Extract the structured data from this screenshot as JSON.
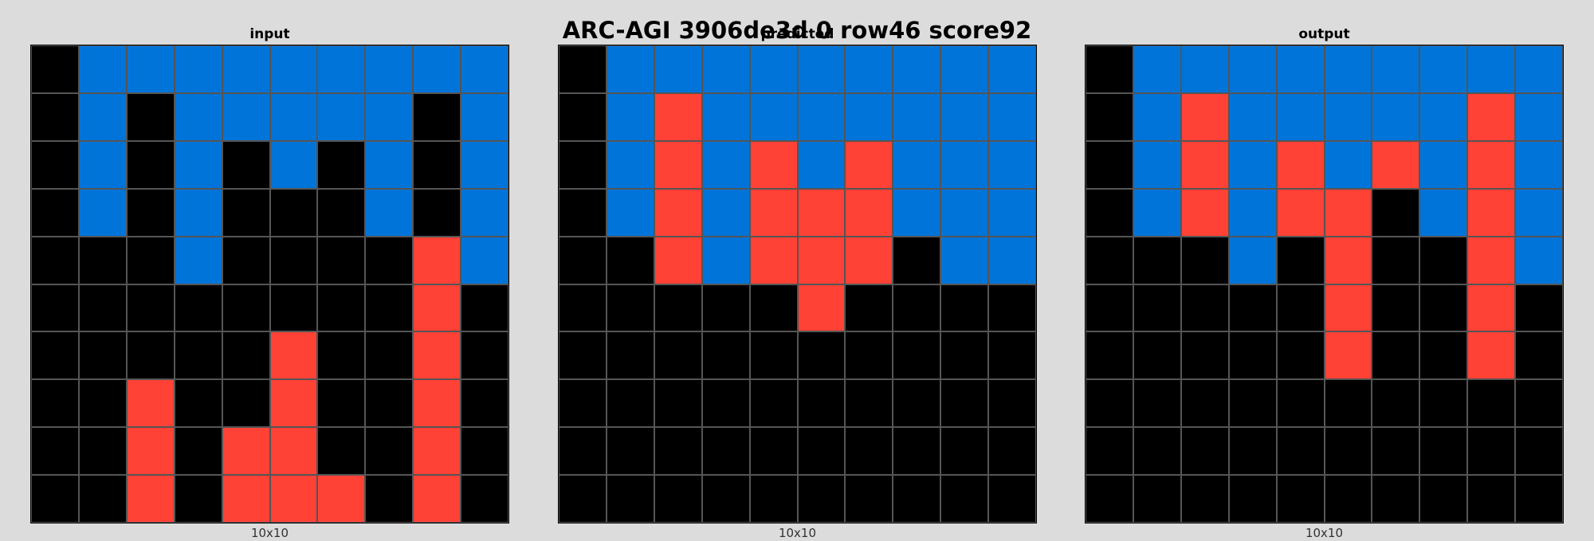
{
  "title": "ARC-AGI 3906de3d 0 row46 score92",
  "palette": {
    "0": "#000000",
    "1": "#0074d9",
    "2": "#ff4136"
  },
  "panels": [
    {
      "label": "input",
      "caption": "10x10",
      "grid": [
        [
          0,
          1,
          1,
          1,
          1,
          1,
          1,
          1,
          1,
          1
        ],
        [
          0,
          1,
          0,
          1,
          1,
          1,
          1,
          1,
          0,
          1
        ],
        [
          0,
          1,
          0,
          1,
          0,
          1,
          0,
          1,
          0,
          1
        ],
        [
          0,
          1,
          0,
          1,
          0,
          0,
          0,
          1,
          0,
          1
        ],
        [
          0,
          0,
          0,
          1,
          0,
          0,
          0,
          0,
          2,
          1
        ],
        [
          0,
          0,
          0,
          0,
          0,
          0,
          0,
          0,
          2,
          0
        ],
        [
          0,
          0,
          0,
          0,
          0,
          2,
          0,
          0,
          2,
          0
        ],
        [
          0,
          0,
          2,
          0,
          0,
          2,
          0,
          0,
          2,
          0
        ],
        [
          0,
          0,
          2,
          0,
          2,
          2,
          0,
          0,
          2,
          0
        ],
        [
          0,
          0,
          2,
          0,
          2,
          2,
          2,
          0,
          2,
          0
        ]
      ]
    },
    {
      "label": "predicted",
      "caption": "10x10",
      "grid": [
        [
          0,
          1,
          1,
          1,
          1,
          1,
          1,
          1,
          1,
          1
        ],
        [
          0,
          1,
          2,
          1,
          1,
          1,
          1,
          1,
          1,
          1
        ],
        [
          0,
          1,
          2,
          1,
          2,
          1,
          2,
          1,
          1,
          1
        ],
        [
          0,
          1,
          2,
          1,
          2,
          2,
          2,
          1,
          1,
          1
        ],
        [
          0,
          0,
          2,
          1,
          2,
          2,
          2,
          0,
          1,
          1
        ],
        [
          0,
          0,
          0,
          0,
          0,
          2,
          0,
          0,
          0,
          0
        ],
        [
          0,
          0,
          0,
          0,
          0,
          0,
          0,
          0,
          0,
          0
        ],
        [
          0,
          0,
          0,
          0,
          0,
          0,
          0,
          0,
          0,
          0
        ],
        [
          0,
          0,
          0,
          0,
          0,
          0,
          0,
          0,
          0,
          0
        ],
        [
          0,
          0,
          0,
          0,
          0,
          0,
          0,
          0,
          0,
          0
        ]
      ]
    },
    {
      "label": "output",
      "caption": "10x10",
      "grid": [
        [
          0,
          1,
          1,
          1,
          1,
          1,
          1,
          1,
          1,
          1
        ],
        [
          0,
          1,
          2,
          1,
          1,
          1,
          1,
          1,
          2,
          1
        ],
        [
          0,
          1,
          2,
          1,
          2,
          1,
          2,
          1,
          2,
          1
        ],
        [
          0,
          1,
          2,
          1,
          2,
          2,
          0,
          1,
          2,
          1
        ],
        [
          0,
          0,
          0,
          1,
          0,
          2,
          0,
          0,
          2,
          1
        ],
        [
          0,
          0,
          0,
          0,
          0,
          2,
          0,
          0,
          2,
          0
        ],
        [
          0,
          0,
          0,
          0,
          0,
          2,
          0,
          0,
          2,
          0
        ],
        [
          0,
          0,
          0,
          0,
          0,
          0,
          0,
          0,
          0,
          0
        ],
        [
          0,
          0,
          0,
          0,
          0,
          0,
          0,
          0,
          0,
          0
        ],
        [
          0,
          0,
          0,
          0,
          0,
          0,
          0,
          0,
          0,
          0
        ]
      ]
    }
  ]
}
